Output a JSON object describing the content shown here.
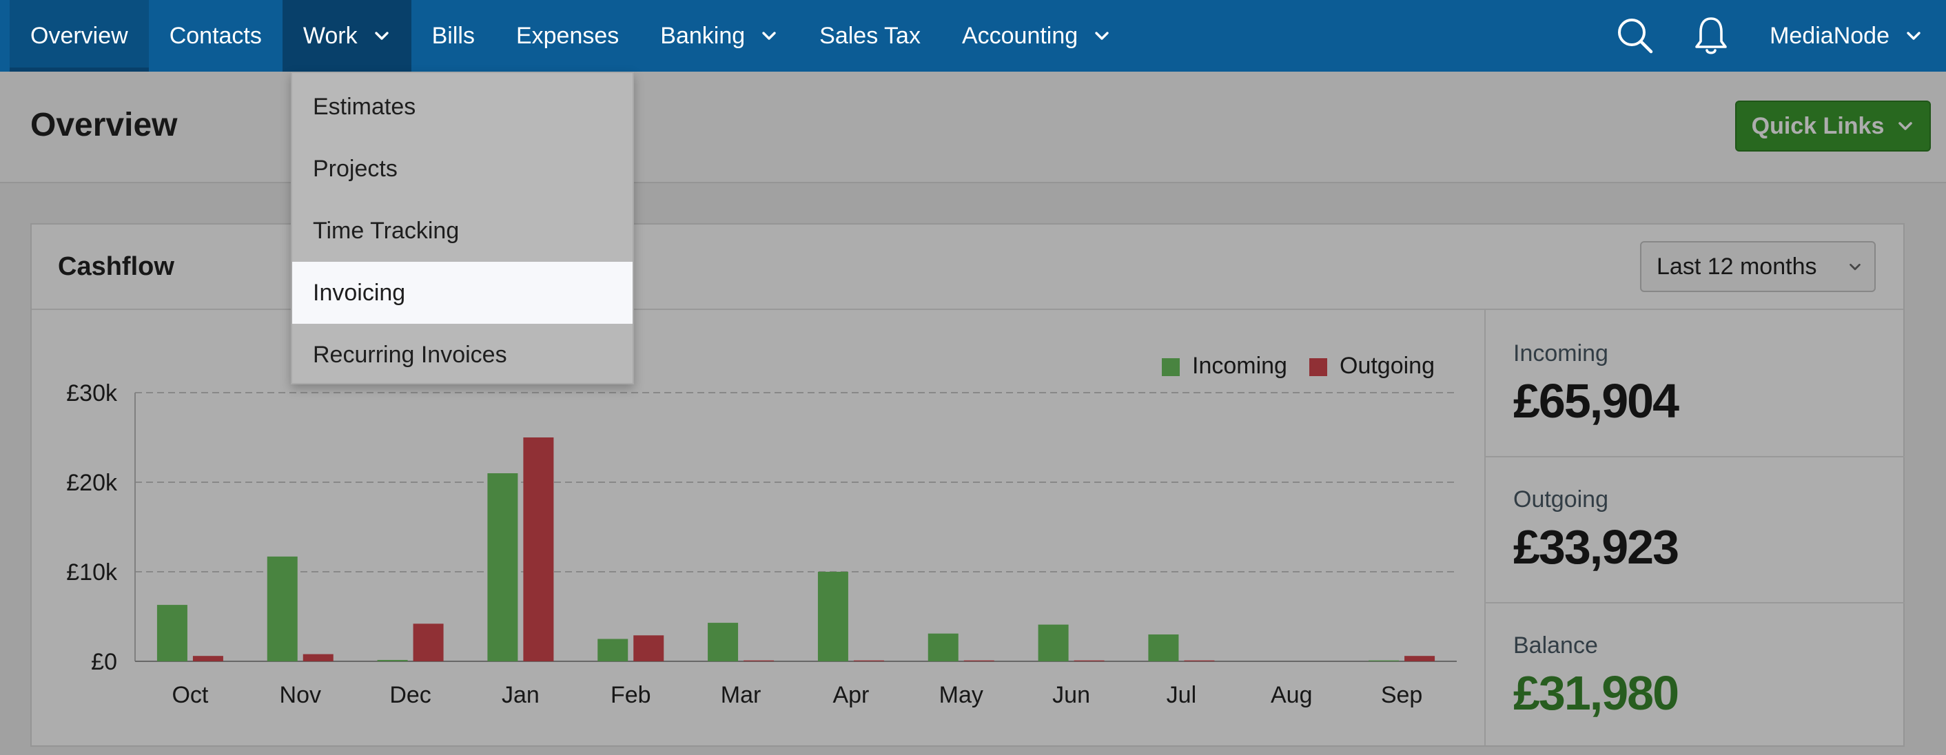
{
  "nav": {
    "items": [
      {
        "label": "Overview",
        "active": true,
        "has_dropdown": false
      },
      {
        "label": "Contacts",
        "has_dropdown": false
      },
      {
        "label": "Work",
        "has_dropdown": true,
        "open": true
      },
      {
        "label": "Bills",
        "has_dropdown": false
      },
      {
        "label": "Expenses",
        "has_dropdown": false
      },
      {
        "label": "Banking",
        "has_dropdown": true
      },
      {
        "label": "Sales Tax",
        "has_dropdown": false
      },
      {
        "label": "Accounting",
        "has_dropdown": true
      }
    ],
    "search_icon": "search-icon",
    "bell_icon": "bell-icon",
    "account_label": "MediaNode"
  },
  "header": {
    "title": "Overview",
    "quick_links_label": "Quick Links"
  },
  "work_menu": {
    "items": [
      "Estimates",
      "Projects",
      "Time Tracking",
      "Invoicing",
      "Recurring Invoices"
    ],
    "highlighted": "Invoicing"
  },
  "cashflow": {
    "title": "Cashflow",
    "range_label": "Last 12 months",
    "totals": [
      {
        "label": "Incoming",
        "value": "£65,904"
      },
      {
        "label": "Outgoing",
        "value": "£33,923"
      },
      {
        "label": "Balance",
        "value": "£31,980"
      }
    ]
  },
  "colors": {
    "nav_bg": "#0c5c95",
    "incoming": "#6cc35f",
    "outgoing": "#d5474f",
    "quick_links": "#3b9a2f",
    "balance": "#3a8a2e"
  },
  "chart_data": {
    "type": "bar",
    "categories": [
      "Oct",
      "Nov",
      "Dec",
      "Jan",
      "Feb",
      "Mar",
      "Apr",
      "May",
      "Jun",
      "Jul",
      "Aug",
      "Sep"
    ],
    "series": [
      {
        "name": "Incoming",
        "values": [
          6300,
          11700,
          150,
          21000,
          2500,
          4300,
          10000,
          3100,
          4100,
          3000,
          0,
          100
        ]
      },
      {
        "name": "Outgoing",
        "values": [
          600,
          800,
          4200,
          25000,
          2900,
          100,
          100,
          100,
          100,
          100,
          0,
          600
        ]
      }
    ],
    "yticks": [
      "£0",
      "£10k",
      "£20k",
      "£30k"
    ],
    "ylim": [
      0,
      30000
    ],
    "grid": true,
    "legend": "top-right"
  }
}
